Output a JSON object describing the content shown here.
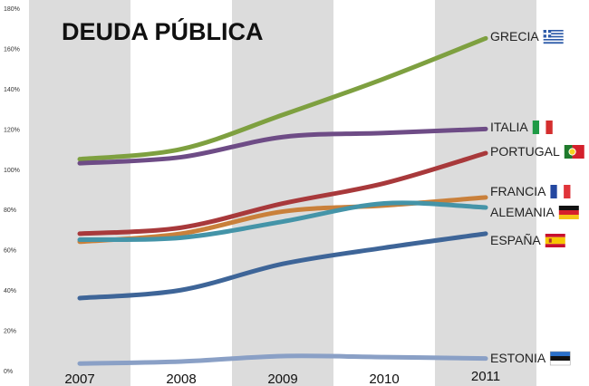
{
  "chart_data": {
    "type": "line",
    "title": "DEUDA PÚBLICA",
    "xlabel": "",
    "ylabel": "",
    "categories": [
      "2007",
      "2008",
      "2009",
      "2010",
      "2011"
    ],
    "ylim": [
      0,
      180
    ],
    "yticks": [
      0,
      20,
      40,
      60,
      80,
      100,
      120,
      140,
      160,
      180
    ],
    "ytick_labels": [
      "0%",
      "20%",
      "40%",
      "60%",
      "80%",
      "100%",
      "120%",
      "140%",
      "160%",
      "180%"
    ],
    "grid": false,
    "series": [
      {
        "name": "GRECIA",
        "values": [
          105,
          110,
          127,
          145,
          165
        ],
        "color": "#7ea040",
        "flag": "greece-flag"
      },
      {
        "name": "ITALIA",
        "values": [
          103,
          106,
          116,
          118,
          120
        ],
        "color": "#6e4c86",
        "flag": "italy-flag"
      },
      {
        "name": "PORTUGAL",
        "values": [
          68,
          71,
          83,
          93,
          108
        ],
        "color": "#a8393b",
        "flag": "portugal-flag"
      },
      {
        "name": "FRANCIA",
        "values": [
          64,
          68,
          79,
          82,
          86
        ],
        "color": "#c9803b",
        "flag": "france-flag"
      },
      {
        "name": "ALEMANIA",
        "values": [
          65,
          66,
          74,
          83,
          81
        ],
        "color": "#4494a8",
        "flag": "germany-flag"
      },
      {
        "name": "ESPAÑA",
        "values": [
          36,
          40,
          53,
          61,
          68
        ],
        "color": "#3e6598",
        "flag": "spain-flag"
      },
      {
        "name": "ESTONIA",
        "values": [
          3.5,
          4.5,
          7.2,
          6.7,
          6
        ],
        "color": "#8aa0c6",
        "flag": "estonia-flag"
      }
    ]
  }
}
